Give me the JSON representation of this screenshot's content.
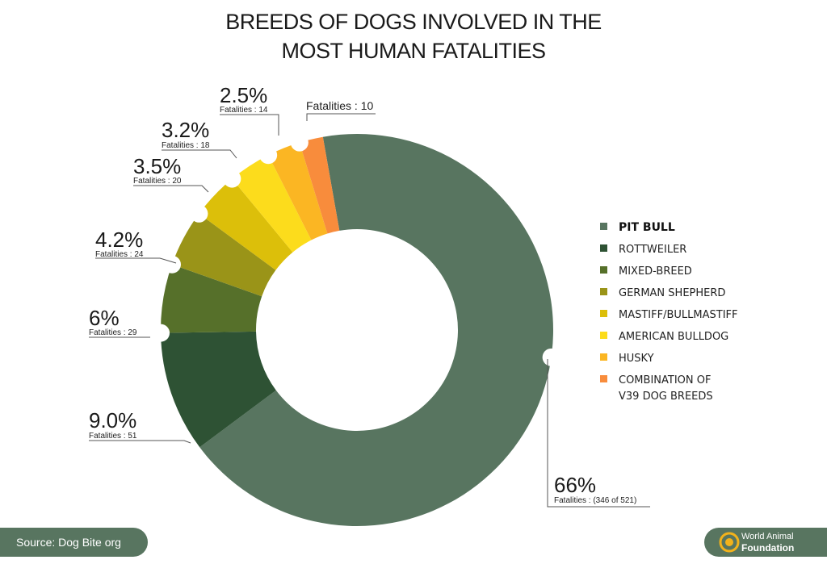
{
  "chart_data": {
    "type": "pie",
    "donut": true,
    "title": [
      "BREEDS OF DOGS INVOLVED IN THE",
      "MOST HUMAN FATALITIES"
    ],
    "legend_position": "right",
    "slices": [
      {
        "label": "PIT BULL",
        "percent_label": "66%",
        "fatalities_label": "Fatalities : (346 of 521)",
        "fatalities": 346,
        "color": "#587560"
      },
      {
        "label": "ROTTWEILER",
        "percent_label": "9.0%",
        "fatalities_label": "Fatalities : 51",
        "fatalities": 51,
        "color": "#2e5234"
      },
      {
        "label": "MIXED-BREED",
        "percent_label": "6%",
        "fatalities_label": "Fatalities : 29",
        "fatalities": 29,
        "color": "#56702a"
      },
      {
        "label": "GERMAN SHEPHERD",
        "percent_label": "4.2%",
        "fatalities_label": "Fatalities : 24",
        "fatalities": 24,
        "color": "#9a9418"
      },
      {
        "label": "MASTIFF/BULLMASTIFF",
        "percent_label": "3.5%",
        "fatalities_label": "Fatalities : 20",
        "fatalities": 20,
        "color": "#dcbf0a"
      },
      {
        "label": "AMERICAN BULLDOG",
        "percent_label": "3.2%",
        "fatalities_label": "Fatalities : 18",
        "fatalities": 18,
        "color": "#fcdc1c"
      },
      {
        "label": "HUSKY",
        "percent_label": "2.5%",
        "fatalities_label": "Fatalities : 14",
        "fatalities": 14,
        "color": "#fbb623"
      },
      {
        "label": [
          "COMBINATION OF",
          "V39 DOG BREEDS"
        ],
        "percent_label": "",
        "fatalities_label": "Fatalities : 10",
        "fatalities": 10,
        "color": "#f88c3c"
      }
    ]
  },
  "footer": {
    "source": "Source: Dog Bite org",
    "logo_line1": "World Animal",
    "logo_line2": "Foundation",
    "brand_color": "#587560"
  }
}
